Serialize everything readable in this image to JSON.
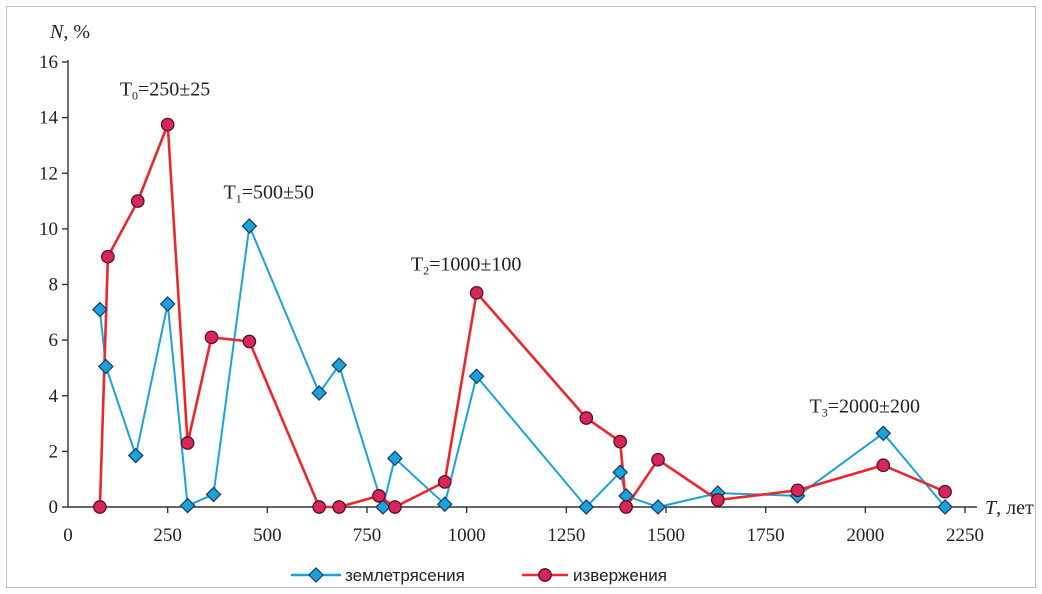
{
  "chart_data": {
    "type": "line",
    "ylabel_var": "N",
    "ylabel_unit": ", %",
    "xlabel_var": "T",
    "xlabel_unit": ", лет",
    "xlim": [
      0,
      2250
    ],
    "ylim": [
      0,
      16
    ],
    "x_ticks": [
      0,
      250,
      500,
      750,
      1000,
      1250,
      1500,
      1750,
      2000,
      2250
    ],
    "y_ticks": [
      0,
      2,
      4,
      6,
      8,
      10,
      12,
      14,
      16
    ],
    "grid": false,
    "legend_position": "bottom",
    "series": [
      {
        "name": "землетрясения",
        "color": "#1aa3d9",
        "marker": "diamond",
        "x": [
          80,
          95,
          170,
          250,
          300,
          365,
          455,
          630,
          680,
          790,
          820,
          945,
          1025,
          1300,
          1385,
          1400,
          1480,
          1630,
          1830,
          2045,
          2200
        ],
        "y": [
          7.1,
          5.05,
          1.85,
          7.3,
          0.05,
          0.45,
          10.1,
          4.1,
          5.1,
          0.0,
          1.75,
          0.1,
          4.7,
          0.0,
          1.25,
          0.4,
          0.0,
          0.5,
          0.4,
          2.65,
          0.0
        ]
      },
      {
        "name": "извержения",
        "color": "#e8282d",
        "marker_color": "#d6265c",
        "marker": "circle",
        "x": [
          80,
          100,
          175,
          250,
          300,
          360,
          455,
          630,
          680,
          780,
          820,
          945,
          1025,
          1300,
          1385,
          1400,
          1480,
          1630,
          1830,
          2045,
          2200
        ],
        "y": [
          0.0,
          9.0,
          11.0,
          13.75,
          2.3,
          6.1,
          5.95,
          0.0,
          0.0,
          0.4,
          0.0,
          0.9,
          7.7,
          3.2,
          2.35,
          0.0,
          1.7,
          0.25,
          0.6,
          1.5,
          0.55
        ]
      }
    ],
    "annotations": [
      {
        "base": "T",
        "sub": "0",
        "text": "=250±25",
        "x": 130,
        "y": 14.8
      },
      {
        "base": "T",
        "sub": "1",
        "text": "=500±50",
        "x": 390,
        "y": 11.1
      },
      {
        "base": "T",
        "sub": "2",
        "text": "=1000±100",
        "x": 860,
        "y": 8.5
      },
      {
        "base": "T",
        "sub": "3",
        "text": "=2000±200",
        "x": 1860,
        "y": 3.4
      }
    ]
  }
}
